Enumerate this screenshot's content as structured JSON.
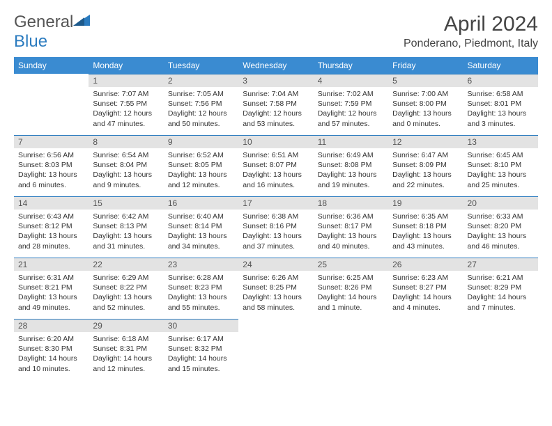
{
  "brand": {
    "part1": "General",
    "part2": "Blue"
  },
  "title": {
    "month_year": "April 2024",
    "location": "Ponderano, Piedmont, Italy"
  },
  "colors": {
    "header_bg": "#3a8bd1",
    "header_text": "#ffffff",
    "daynum_bg": "#e3e3e3",
    "border": "#2b7bbf",
    "text": "#333333",
    "logo_gray": "#555555",
    "logo_blue": "#2b7bbf",
    "background": "#ffffff"
  },
  "fonts": {
    "base_family": "Arial",
    "title_size_pt": 22,
    "header_size_pt": 9,
    "body_size_pt": 8
  },
  "weekdays": [
    "Sunday",
    "Monday",
    "Tuesday",
    "Wednesday",
    "Thursday",
    "Friday",
    "Saturday"
  ],
  "weeks": [
    [
      null,
      {
        "n": "1",
        "sunrise": "7:07 AM",
        "sunset": "7:55 PM",
        "daylight": "12 hours and 47 minutes."
      },
      {
        "n": "2",
        "sunrise": "7:05 AM",
        "sunset": "7:56 PM",
        "daylight": "12 hours and 50 minutes."
      },
      {
        "n": "3",
        "sunrise": "7:04 AM",
        "sunset": "7:58 PM",
        "daylight": "12 hours and 53 minutes."
      },
      {
        "n": "4",
        "sunrise": "7:02 AM",
        "sunset": "7:59 PM",
        "daylight": "12 hours and 57 minutes."
      },
      {
        "n": "5",
        "sunrise": "7:00 AM",
        "sunset": "8:00 PM",
        "daylight": "13 hours and 0 minutes."
      },
      {
        "n": "6",
        "sunrise": "6:58 AM",
        "sunset": "8:01 PM",
        "daylight": "13 hours and 3 minutes."
      }
    ],
    [
      {
        "n": "7",
        "sunrise": "6:56 AM",
        "sunset": "8:03 PM",
        "daylight": "13 hours and 6 minutes."
      },
      {
        "n": "8",
        "sunrise": "6:54 AM",
        "sunset": "8:04 PM",
        "daylight": "13 hours and 9 minutes."
      },
      {
        "n": "9",
        "sunrise": "6:52 AM",
        "sunset": "8:05 PM",
        "daylight": "13 hours and 12 minutes."
      },
      {
        "n": "10",
        "sunrise": "6:51 AM",
        "sunset": "8:07 PM",
        "daylight": "13 hours and 16 minutes."
      },
      {
        "n": "11",
        "sunrise": "6:49 AM",
        "sunset": "8:08 PM",
        "daylight": "13 hours and 19 minutes."
      },
      {
        "n": "12",
        "sunrise": "6:47 AM",
        "sunset": "8:09 PM",
        "daylight": "13 hours and 22 minutes."
      },
      {
        "n": "13",
        "sunrise": "6:45 AM",
        "sunset": "8:10 PM",
        "daylight": "13 hours and 25 minutes."
      }
    ],
    [
      {
        "n": "14",
        "sunrise": "6:43 AM",
        "sunset": "8:12 PM",
        "daylight": "13 hours and 28 minutes."
      },
      {
        "n": "15",
        "sunrise": "6:42 AM",
        "sunset": "8:13 PM",
        "daylight": "13 hours and 31 minutes."
      },
      {
        "n": "16",
        "sunrise": "6:40 AM",
        "sunset": "8:14 PM",
        "daylight": "13 hours and 34 minutes."
      },
      {
        "n": "17",
        "sunrise": "6:38 AM",
        "sunset": "8:16 PM",
        "daylight": "13 hours and 37 minutes."
      },
      {
        "n": "18",
        "sunrise": "6:36 AM",
        "sunset": "8:17 PM",
        "daylight": "13 hours and 40 minutes."
      },
      {
        "n": "19",
        "sunrise": "6:35 AM",
        "sunset": "8:18 PM",
        "daylight": "13 hours and 43 minutes."
      },
      {
        "n": "20",
        "sunrise": "6:33 AM",
        "sunset": "8:20 PM",
        "daylight": "13 hours and 46 minutes."
      }
    ],
    [
      {
        "n": "21",
        "sunrise": "6:31 AM",
        "sunset": "8:21 PM",
        "daylight": "13 hours and 49 minutes."
      },
      {
        "n": "22",
        "sunrise": "6:29 AM",
        "sunset": "8:22 PM",
        "daylight": "13 hours and 52 minutes."
      },
      {
        "n": "23",
        "sunrise": "6:28 AM",
        "sunset": "8:23 PM",
        "daylight": "13 hours and 55 minutes."
      },
      {
        "n": "24",
        "sunrise": "6:26 AM",
        "sunset": "8:25 PM",
        "daylight": "13 hours and 58 minutes."
      },
      {
        "n": "25",
        "sunrise": "6:25 AM",
        "sunset": "8:26 PM",
        "daylight": "14 hours and 1 minute."
      },
      {
        "n": "26",
        "sunrise": "6:23 AM",
        "sunset": "8:27 PM",
        "daylight": "14 hours and 4 minutes."
      },
      {
        "n": "27",
        "sunrise": "6:21 AM",
        "sunset": "8:29 PM",
        "daylight": "14 hours and 7 minutes."
      }
    ],
    [
      {
        "n": "28",
        "sunrise": "6:20 AM",
        "sunset": "8:30 PM",
        "daylight": "14 hours and 10 minutes."
      },
      {
        "n": "29",
        "sunrise": "6:18 AM",
        "sunset": "8:31 PM",
        "daylight": "14 hours and 12 minutes."
      },
      {
        "n": "30",
        "sunrise": "6:17 AM",
        "sunset": "8:32 PM",
        "daylight": "14 hours and 15 minutes."
      },
      null,
      null,
      null,
      null
    ]
  ],
  "labels": {
    "sunrise": "Sunrise:",
    "sunset": "Sunset:",
    "daylight": "Daylight:"
  }
}
